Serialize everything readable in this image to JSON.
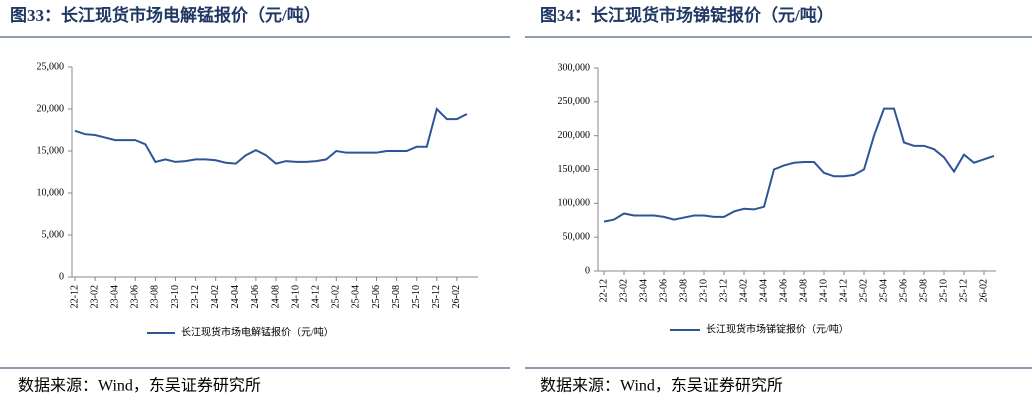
{
  "chart_data": [
    {
      "type": "line",
      "title": "图33：长江现货市场电解锰报价（元/吨）",
      "categories": [
        "22-12",
        null,
        "23-02",
        null,
        "23-04",
        null,
        "23-06",
        null,
        "23-08",
        null,
        "23-10",
        null,
        "23-12",
        null,
        "24-02",
        null,
        "24-04",
        null,
        "24-06",
        null,
        "24-08",
        null,
        "24-10",
        null,
        "24-12",
        null,
        "25-02",
        null,
        "25-04",
        null,
        "25-06",
        null,
        "25-08",
        null,
        "25-10",
        null,
        "25-12",
        null,
        "26-02",
        null
      ],
      "series": [
        {
          "name": "长江现货市场电解锰报价（元/吨）",
          "color": "#2f5597",
          "values": [
            17400,
            17000,
            16900,
            16600,
            16300,
            16300,
            16300,
            15800,
            13700,
            14000,
            13700,
            13800,
            14000,
            14000,
            13900,
            13600,
            13500,
            14500,
            15100,
            14500,
            13500,
            13800,
            13700,
            13700,
            13800,
            14000,
            15000,
            14800,
            14800,
            14800,
            14800,
            15000,
            15000,
            15000,
            15500,
            15500,
            20000,
            18800,
            18800,
            19400
          ]
        }
      ],
      "ylim": [
        0,
        25000
      ],
      "yticks": [
        0,
        {
          "value": 5000,
          "label": "5,000"
        },
        {
          "value": 10000,
          "label": "10,000"
        },
        {
          "value": 15000,
          "label": "15,000"
        },
        {
          "value": 20000,
          "label": "20,000"
        },
        {
          "value": 25000,
          "label": "25,000"
        }
      ],
      "source": "数据来源：Wind，东吴证券研究所"
    },
    {
      "type": "line",
      "title": "图34：长江现货市场锑锭报价（元/吨）",
      "categories": [
        "22-12",
        null,
        "23-02",
        null,
        "23-04",
        null,
        "23-06",
        null,
        "23-08",
        null,
        "23-10",
        null,
        "23-12",
        null,
        "24-02",
        null,
        "24-04",
        null,
        "24-06",
        null,
        "24-08",
        null,
        "24-10",
        null,
        "24-12",
        null,
        "25-02",
        null,
        "25-04",
        null,
        "25-06",
        null,
        "25-08",
        null,
        "25-10",
        null,
        "25-12",
        null,
        "26-02",
        null
      ],
      "series": [
        {
          "name": "长江现货市场锑锭报价（元/吨）",
          "color": "#2f5597",
          "values": [
            73000,
            76000,
            85000,
            82000,
            82000,
            82000,
            80000,
            76000,
            79000,
            82000,
            82000,
            80000,
            80000,
            88000,
            92000,
            91000,
            95000,
            150000,
            156000,
            160000,
            161000,
            161000,
            145000,
            140000,
            140000,
            142000,
            150000,
            200000,
            240000,
            240000,
            190000,
            185000,
            185000,
            180000,
            168000,
            147000,
            172000,
            160000,
            165000,
            170000
          ]
        }
      ],
      "ylim": [
        0,
        300000
      ],
      "yticks": [
        0,
        {
          "value": 50000,
          "label": "50,000"
        },
        {
          "value": 100000,
          "label": "100,000"
        },
        {
          "value": 150000,
          "label": "150,000"
        },
        {
          "value": 200000,
          "label": "200,000"
        },
        {
          "value": 250000,
          "label": "250,000"
        },
        {
          "value": 300000,
          "label": "300,000"
        }
      ],
      "source": "数据来源：Wind，东吴证券研究所"
    }
  ]
}
